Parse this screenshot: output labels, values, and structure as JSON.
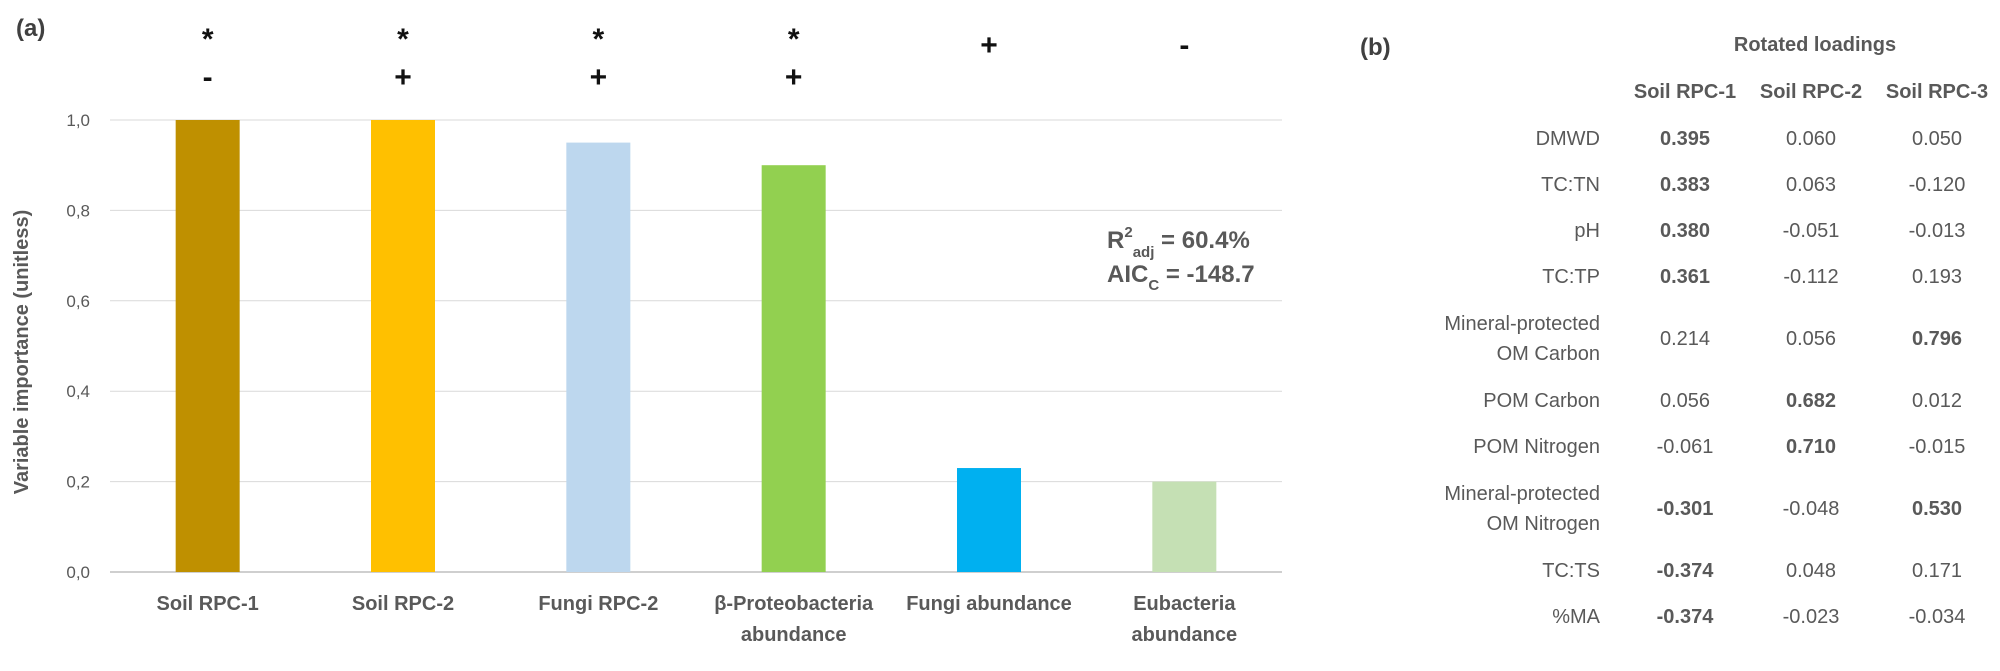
{
  "panel_a": {
    "label": "(a)"
  },
  "chart_data": {
    "type": "bar",
    "categories": [
      "Soil RPC-1",
      "Soil RPC-2",
      "Fungi RPC-2",
      "β-Proteobacteria abundance",
      "Fungi abundance",
      "Eubacteria abundance"
    ],
    "category_lines": [
      [
        "Soil RPC-1"
      ],
      [
        "Soil RPC-2"
      ],
      [
        "Fungi RPC-2"
      ],
      [
        "β-Proteobacteria",
        "abundance"
      ],
      [
        "Fungi abundance"
      ],
      [
        "Eubacteria",
        "abundance"
      ]
    ],
    "values": [
      1.0,
      1.0,
      0.95,
      0.9,
      0.23,
      0.2
    ],
    "colors": [
      "#BF9000",
      "#FFC000",
      "#BDD7EE",
      "#92D050",
      "#00B0F0",
      "#C5E0B4"
    ],
    "significance": [
      "*",
      "*",
      "*",
      "*",
      "",
      ""
    ],
    "direction": [
      "-",
      "+",
      "+",
      "+",
      "+",
      "-"
    ],
    "xlabel": "",
    "ylabel": "Variable importance (unitless)",
    "ylim": [
      0,
      1.0
    ],
    "yticks": [
      "0,0",
      "0,2",
      "0,4",
      "0,6",
      "0,8",
      "1,0"
    ],
    "ytick_values": [
      0,
      0.2,
      0.4,
      0.6,
      0.8,
      1.0
    ],
    "grid": true,
    "annotations": {
      "r2_prefix": "R",
      "r2_sup": "2",
      "r2_sub": "adj",
      "r2_value": " = 60.4%",
      "aic_prefix": "AIC",
      "aic_sub": "C",
      "aic_value": " = -148.7"
    }
  },
  "panel_b": {
    "label": "(b)",
    "title": "Rotated loadings",
    "columns": [
      "Soil RPC-1",
      "Soil RPC-2",
      "Soil RPC-3"
    ],
    "rows": [
      {
        "name": [
          "DMWD"
        ],
        "values": [
          "0.395",
          "0.060",
          "0.050"
        ],
        "bold": [
          true,
          false,
          false
        ]
      },
      {
        "name": [
          "TC:TN"
        ],
        "values": [
          "0.383",
          "0.063",
          "-0.120"
        ],
        "bold": [
          true,
          false,
          false
        ]
      },
      {
        "name": [
          "pH"
        ],
        "values": [
          "0.380",
          "-0.051",
          "-0.013"
        ],
        "bold": [
          true,
          false,
          false
        ]
      },
      {
        "name": [
          "TC:TP"
        ],
        "values": [
          "0.361",
          "-0.112",
          "0.193"
        ],
        "bold": [
          true,
          false,
          false
        ]
      },
      {
        "name": [
          "Mineral-protected",
          "OM Carbon"
        ],
        "values": [
          "0.214",
          "0.056",
          "0.796"
        ],
        "bold": [
          false,
          false,
          true
        ]
      },
      {
        "name": [
          "POM Carbon"
        ],
        "values": [
          "0.056",
          "0.682",
          "0.012"
        ],
        "bold": [
          false,
          true,
          false
        ]
      },
      {
        "name": [
          "POM Nitrogen"
        ],
        "values": [
          "-0.061",
          "0.710",
          "-0.015"
        ],
        "bold": [
          false,
          true,
          false
        ]
      },
      {
        "name": [
          "Mineral-protected",
          "OM Nitrogen"
        ],
        "values": [
          "-0.301",
          "-0.048",
          "0.530"
        ],
        "bold": [
          true,
          false,
          true
        ]
      },
      {
        "name": [
          "TC:TS"
        ],
        "values": [
          "-0.374",
          "0.048",
          "0.171"
        ],
        "bold": [
          true,
          false,
          false
        ]
      },
      {
        "name": [
          "%MA"
        ],
        "values": [
          "-0.374",
          "-0.023",
          "-0.034"
        ],
        "bold": [
          true,
          false,
          false
        ]
      }
    ]
  }
}
